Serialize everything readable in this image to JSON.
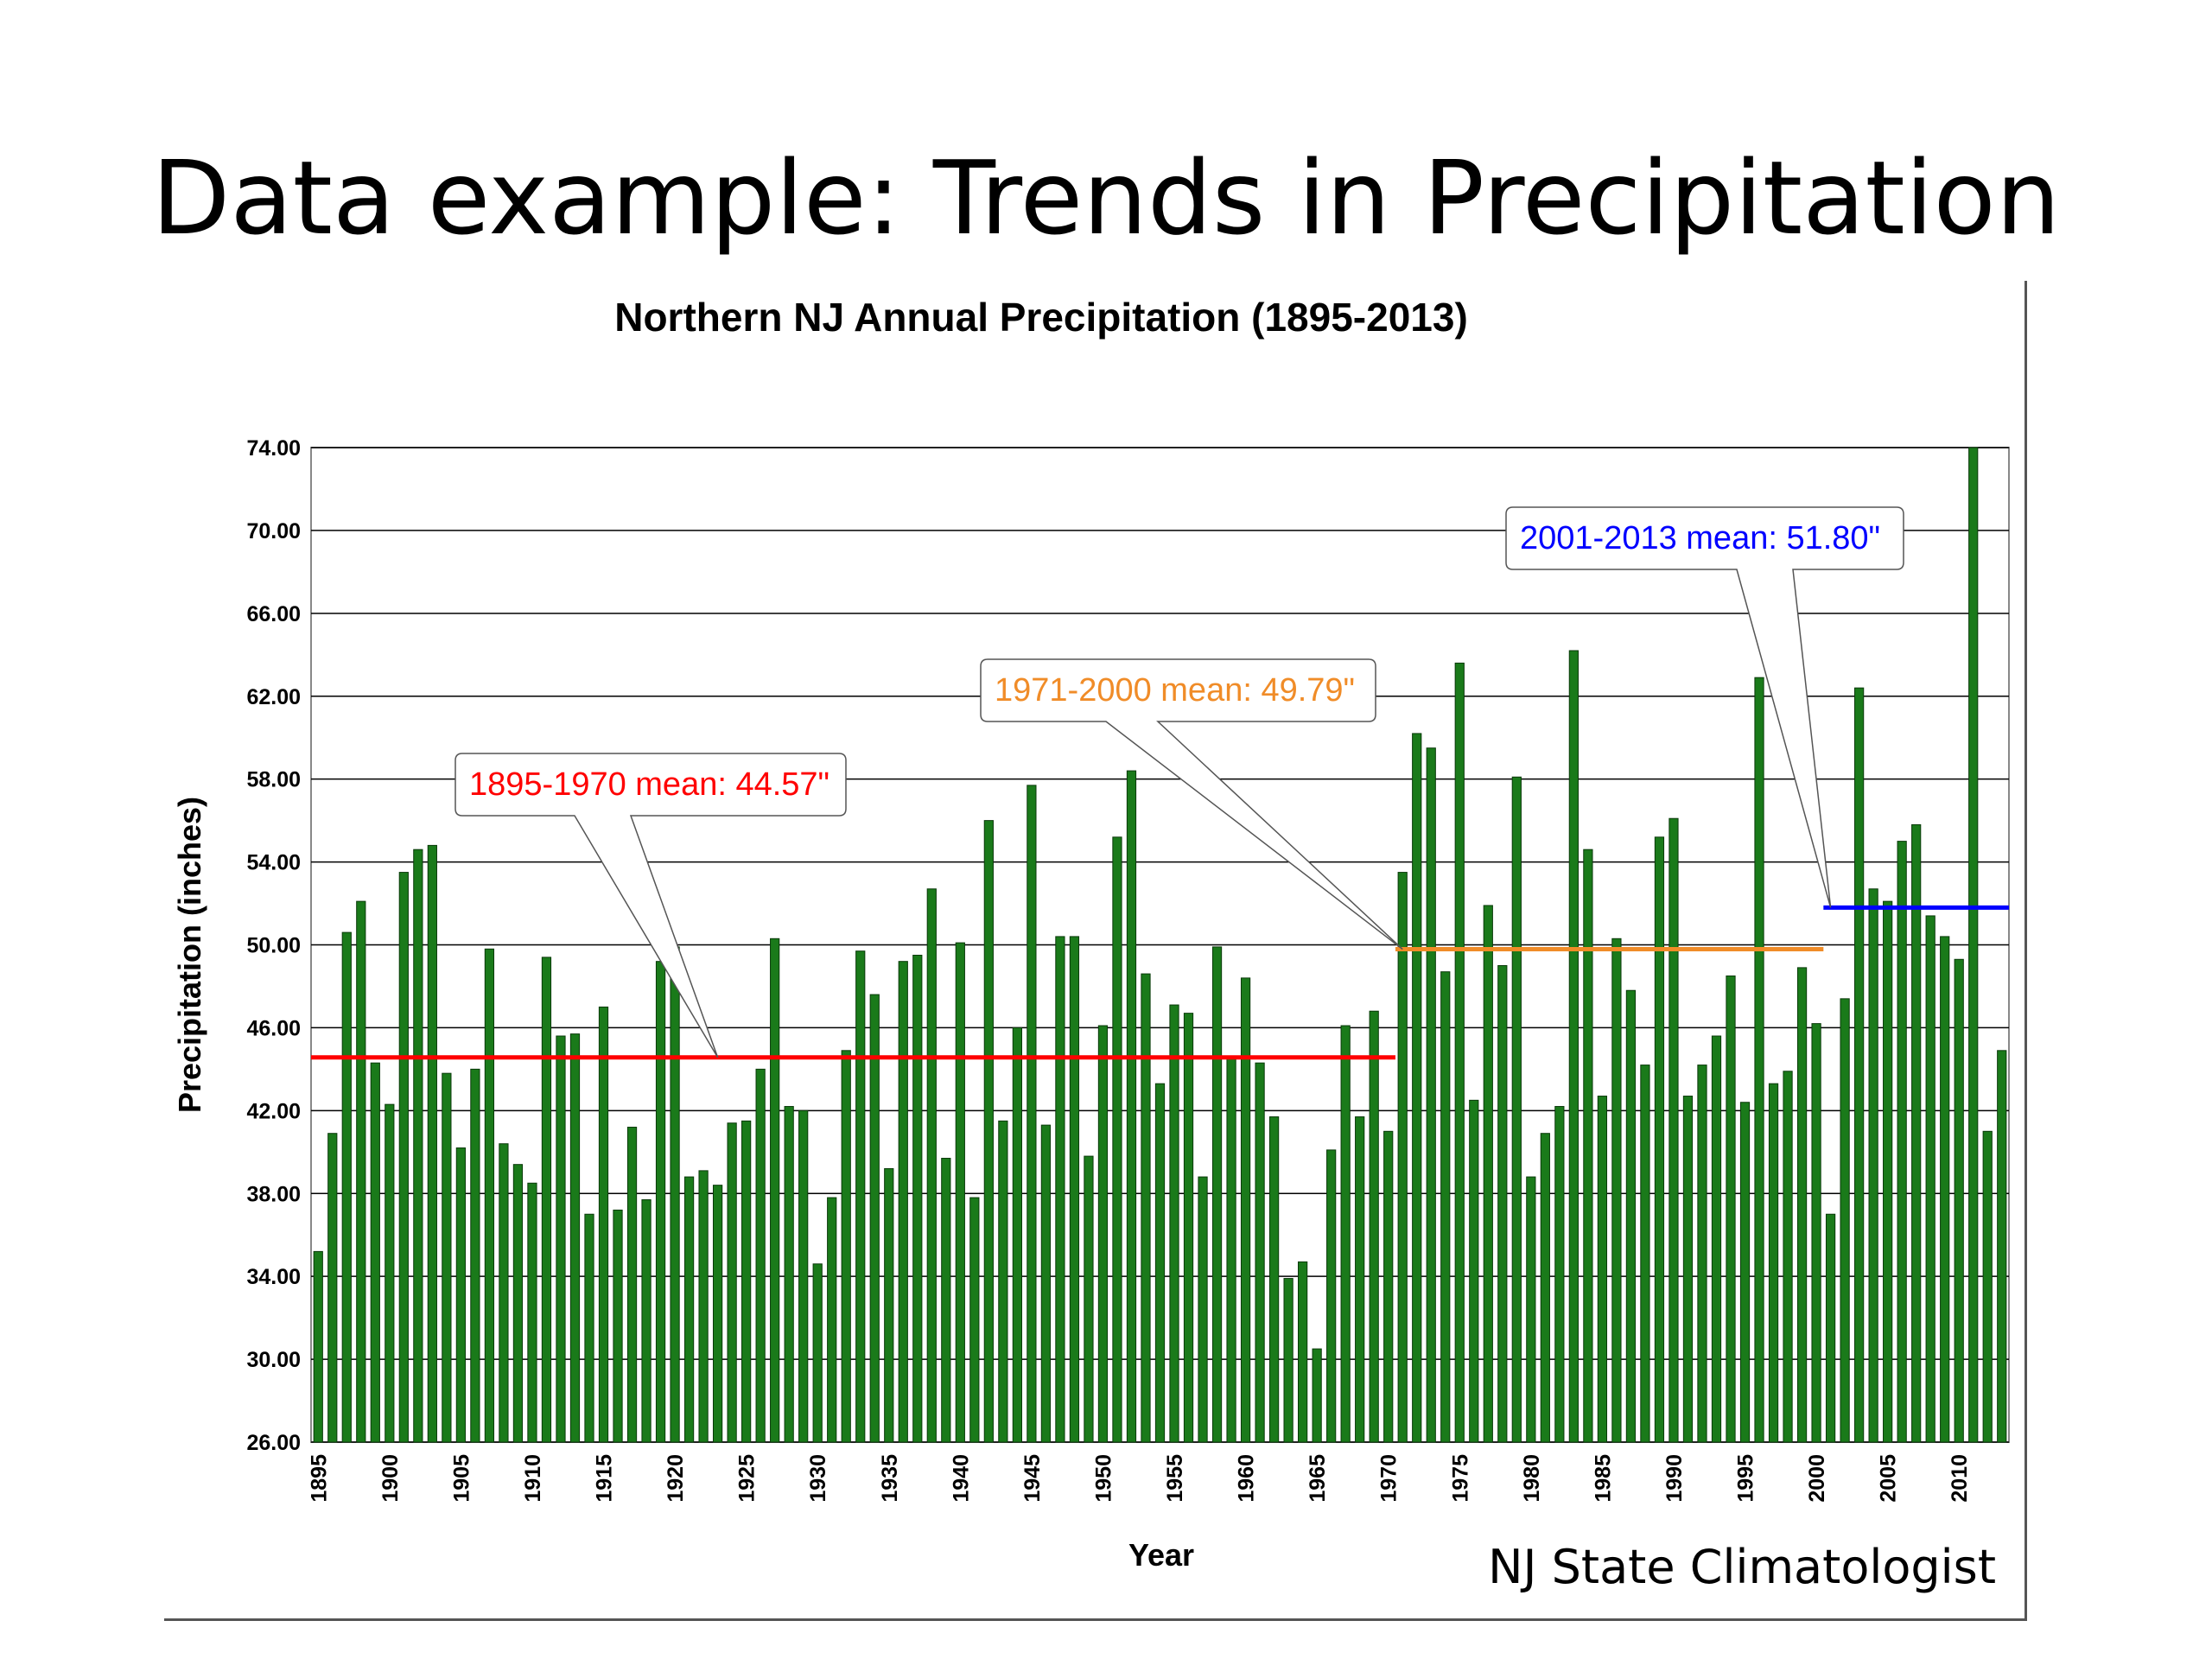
{
  "slide": {
    "title": "Data example: Trends in Precipitation",
    "credit": "NJ State Climatologist"
  },
  "colors": {
    "bar": "#1a7a1a",
    "bar_stroke": "#0a3a0a",
    "mean_1895_1970": "#ff0000",
    "mean_1971_2000": "#f08c28",
    "mean_2001_2013": "#0000ff",
    "grid": "#000000"
  },
  "chart_data": {
    "type": "bar",
    "title": "Northern NJ Annual Precipitation (1895-2013)",
    "xlabel": "Year",
    "ylabel": "Precipitation (inches)",
    "ylim": [
      26,
      74
    ],
    "yticks": [
      "74.00",
      "70.00",
      "66.00",
      "62.00",
      "58.00",
      "54.00",
      "50.00",
      "46.00",
      "42.00",
      "38.00",
      "34.00",
      "30.00",
      "26.00"
    ],
    "xtick_labels": [
      "1895",
      "1900",
      "1905",
      "1910",
      "1915",
      "1920",
      "1925",
      "1930",
      "1935",
      "1940",
      "1945",
      "1950",
      "1955",
      "1960",
      "1965",
      "1970",
      "1975",
      "1980",
      "1985",
      "1990",
      "1995",
      "2000",
      "2005",
      "2010"
    ],
    "start_year": 1895,
    "end_year": 2013,
    "values": [
      35.2,
      40.9,
      50.6,
      52.1,
      44.3,
      42.3,
      53.5,
      54.6,
      54.8,
      43.8,
      40.2,
      44.0,
      49.8,
      40.4,
      39.4,
      38.5,
      49.4,
      45.6,
      45.7,
      37.0,
      47.0,
      37.2,
      41.2,
      37.7,
      49.2,
      49.9,
      38.8,
      39.1,
      38.4,
      41.4,
      41.5,
      44.0,
      50.3,
      42.2,
      42.0,
      34.6,
      37.8,
      44.9,
      49.7,
      47.6,
      39.2,
      49.2,
      49.5,
      52.7,
      39.7,
      50.1,
      37.8,
      56.0,
      41.5,
      46.0,
      57.7,
      41.3,
      50.4,
      50.4,
      39.8,
      46.1,
      55.2,
      58.4,
      48.6,
      43.3,
      47.1,
      46.7,
      38.8,
      49.9,
      44.6,
      48.4,
      44.3,
      41.7,
      33.9,
      34.7,
      30.5,
      40.1,
      46.1,
      41.7,
      46.8,
      41.0,
      53.5,
      60.2,
      59.5,
      48.7,
      63.6,
      42.5,
      51.9,
      49.0,
      58.1,
      38.8,
      40.9,
      42.2,
      64.2,
      54.6,
      42.7,
      50.3,
      47.8,
      44.2,
      55.2,
      56.1,
      42.7,
      44.2,
      45.6,
      48.5,
      42.4,
      62.9,
      43.3,
      43.9,
      48.9,
      46.2,
      37.0,
      47.4,
      62.4,
      52.7,
      52.1,
      55.0,
      55.8,
      51.4,
      50.4,
      49.3,
      74.0,
      41.0,
      44.9
    ],
    "means": [
      {
        "label": "1895-1970 mean:  44.57\"",
        "start": 1895,
        "end": 1970,
        "value": 44.57,
        "pointer_year": 1923
      },
      {
        "label": "1971-2000 mean:  49.79\"",
        "start": 1971,
        "end": 2000,
        "value": 49.79,
        "pointer_year": 1971
      },
      {
        "label": "2001-2013 mean:  51.80\"",
        "start": 2001,
        "end": 2013,
        "value": 51.8,
        "pointer_year": 2001
      }
    ]
  }
}
